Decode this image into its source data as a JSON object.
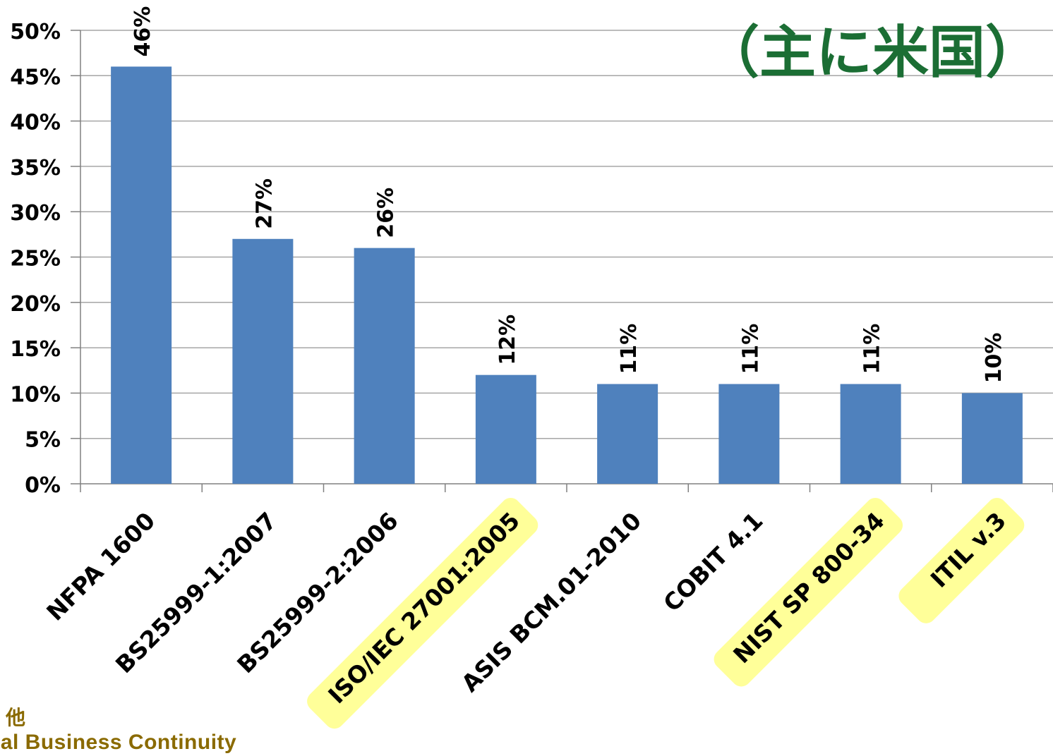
{
  "callout": {
    "text": "（主に米国）",
    "color": "#1b6e34"
  },
  "footer": {
    "line1": "他",
    "line2": "oal Business Continuity"
  },
  "chart_data": {
    "type": "bar",
    "categories": [
      "NFPA 1600",
      "BS25999-1:2007",
      "BS25999-2:2006",
      "ISO/IEC 27001:2005",
      "ASIS BCM.01-2010",
      "COBIT 4.1",
      "NIST SP 800-34",
      "ITIL v.3"
    ],
    "values": [
      46,
      27,
      26,
      12,
      11,
      11,
      11,
      10
    ],
    "data_labels": [
      "46%",
      "27%",
      "26%",
      "12%",
      "11%",
      "11%",
      "11%",
      "10%"
    ],
    "highlighted": [
      false,
      false,
      false,
      true,
      false,
      false,
      true,
      true
    ],
    "ylim": [
      0,
      50
    ],
    "yticks": [
      "0%",
      "5%",
      "10%",
      "15%",
      "20%",
      "25%",
      "30%",
      "35%",
      "40%",
      "45%",
      "50%"
    ],
    "ytick_values": [
      0,
      5,
      10,
      15,
      20,
      25,
      30,
      35,
      40,
      45,
      50
    ],
    "grid": true,
    "bar_color": "#4f81bd",
    "highlight_color": "#ffff99"
  }
}
